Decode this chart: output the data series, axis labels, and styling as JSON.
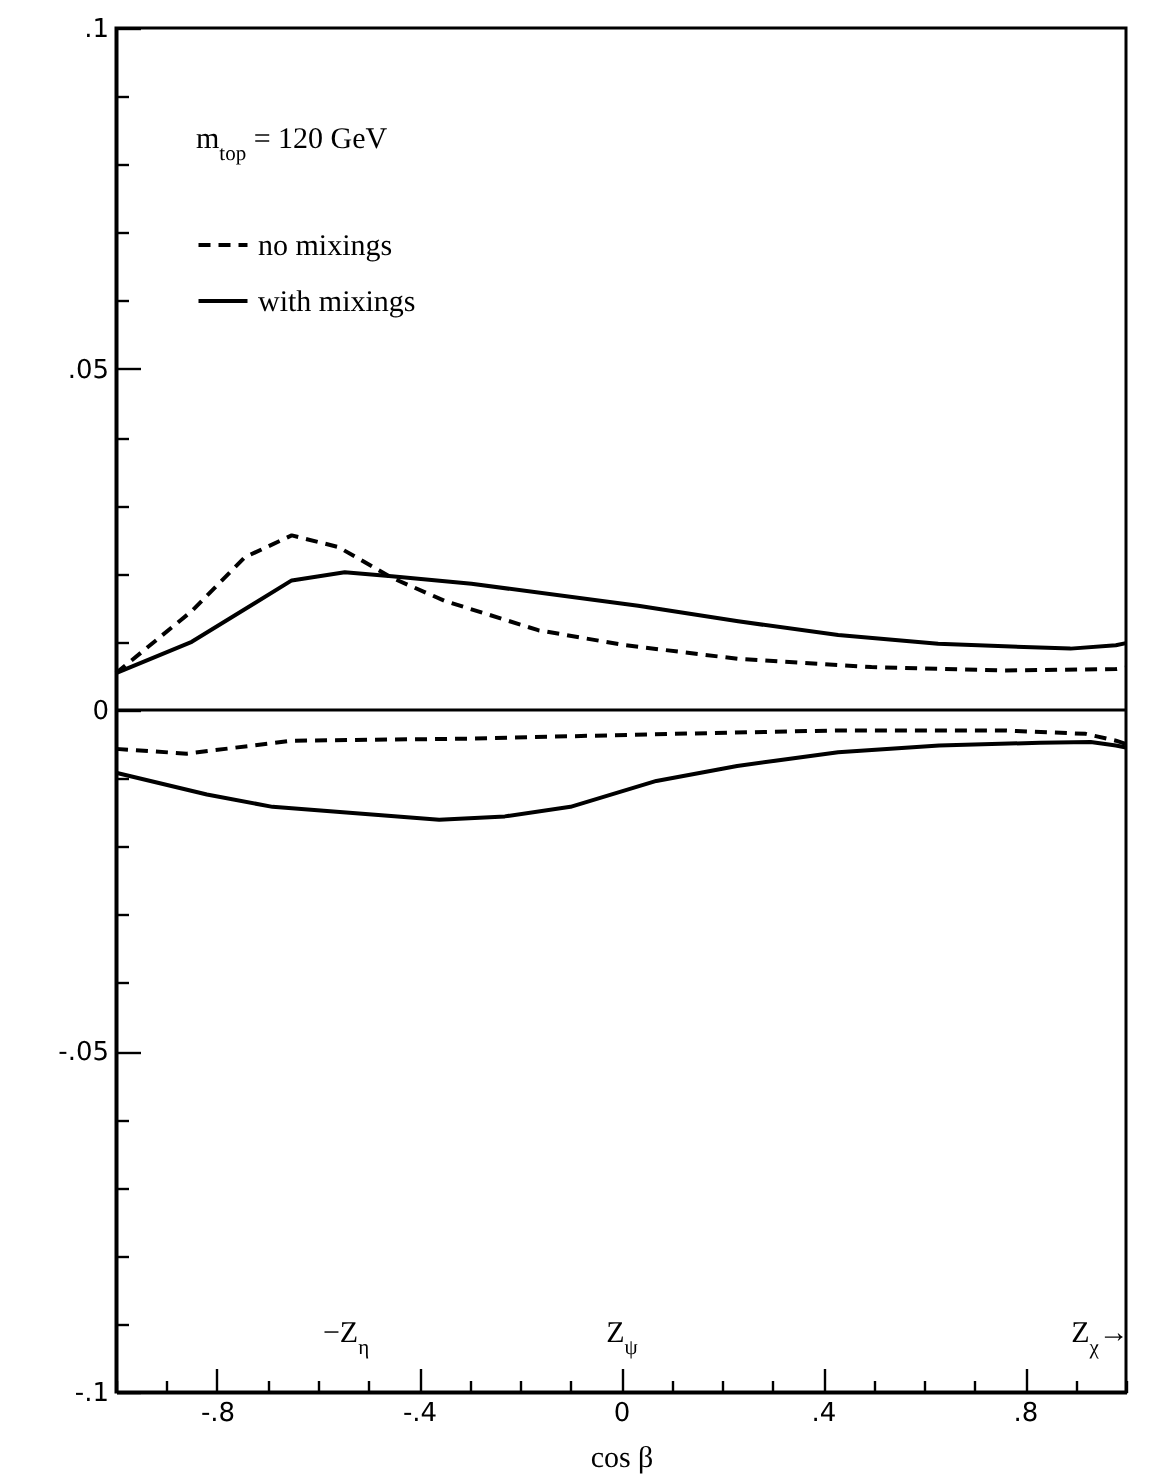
{
  "chart_data": {
    "type": "line",
    "xlabel": "cos β",
    "annotations": [
      "m$_{top}$ = 120 GeV",
      "−Z$_{η}$",
      "Z$_{ψ}$",
      "Z$_{χ}$→"
    ],
    "series": [
      {
        "name": "no mixings",
        "color": "#000000",
        "line_style": "dashed",
        "x": [
          -1,
          -0.85,
          -0.745,
          -0.652,
          -0.56,
          -0.454,
          -0.349,
          -0.164,
          0.008,
          0.232,
          0.496,
          0.76,
          0.98,
          1
        ],
        "values": [
          0.0054,
          0.0145,
          0.0224,
          0.0256,
          0.0239,
          0.0194,
          0.016,
          0.0117,
          0.0095,
          0.0075,
          0.0063,
          0.0058,
          0.006,
          0.0062
        ]
      },
      {
        "name": "with mixings",
        "color": "#000000",
        "line_style": "solid",
        "x": [
          -1,
          -0.85,
          -0.652,
          -0.547,
          -0.454,
          -0.296,
          0.034,
          0.232,
          0.43,
          0.628,
          0.89,
          0.98,
          1
        ],
        "values": [
          0.0054,
          0.01,
          0.019,
          0.0202,
          0.0196,
          0.0185,
          0.0153,
          0.013,
          0.011,
          0.0097,
          0.009,
          0.0095,
          0.0098
        ]
      },
      {
        "color": "#000000",
        "line_style": "dashed",
        "x": [
          -1,
          -0.86,
          -0.652,
          -0.3,
          0.1,
          0.43,
          0.76,
          0.92,
          0.98,
          1
        ],
        "values": [
          -0.0057,
          -0.0064,
          -0.0045,
          -0.0042,
          -0.0035,
          -0.003,
          -0.003,
          -0.0035,
          -0.0045,
          -0.005
        ]
      },
      {
        "color": "#000000",
        "line_style": "solid",
        "x": [
          -1,
          -0.82,
          -0.69,
          -0.36,
          -0.23,
          -0.1,
          0.07,
          0.23,
          0.43,
          0.63,
          0.83,
          0.93,
          0.98,
          1
        ],
        "values": [
          -0.0092,
          -0.0124,
          -0.0142,
          -0.0161,
          -0.0156,
          -0.0142,
          -0.0104,
          -0.0082,
          -0.0062,
          -0.0052,
          -0.0048,
          -0.0047,
          -0.0052,
          -0.0055
        ]
      }
    ],
    "ref_lines": [
      {
        "axis": "y",
        "value": 0
      }
    ],
    "xlim": [
      -1,
      1
    ],
    "xticks": [
      {
        "value": -1,
        "label": null
      },
      {
        "value": -0.9,
        "label": null
      },
      {
        "value": -0.8,
        "label": "-.8"
      },
      {
        "value": -0.7,
        "label": null
      },
      {
        "value": -0.6,
        "label": null
      },
      {
        "value": -0.5,
        "label": null
      },
      {
        "value": -0.4,
        "label": "-.4"
      },
      {
        "value": -0.3,
        "label": null
      },
      {
        "value": -0.2,
        "label": null
      },
      {
        "value": -0.1,
        "label": null
      },
      {
        "value": 0,
        "label": "0"
      },
      {
        "value": 0.1,
        "label": null
      },
      {
        "value": 0.2,
        "label": null
      },
      {
        "value": 0.3,
        "label": null
      },
      {
        "value": 0.4,
        "label": ".4"
      },
      {
        "value": 0.5,
        "label": null
      },
      {
        "value": 0.6,
        "label": null
      },
      {
        "value": 0.7,
        "label": null
      },
      {
        "value": 0.8,
        "label": ".8"
      },
      {
        "value": 0.9,
        "label": null
      },
      {
        "value": 1,
        "label": null
      }
    ],
    "ylim": [
      -0.1,
      0.1
    ],
    "yticks": [
      {
        "value": -0.1,
        "label": "-.1"
      },
      {
        "value": -0.09,
        "label": null
      },
      {
        "value": -0.08,
        "label": null
      },
      {
        "value": -0.07,
        "label": null
      },
      {
        "value": -0.06,
        "label": null
      },
      {
        "value": -0.05,
        "label": "-.05"
      },
      {
        "value": -0.04,
        "label": null
      },
      {
        "value": -0.03,
        "label": null
      },
      {
        "value": -0.02,
        "label": null
      },
      {
        "value": -0.01,
        "label": null
      },
      {
        "value": 0,
        "label": "0"
      },
      {
        "value": 0.01,
        "label": null
      },
      {
        "value": 0.02,
        "label": null
      },
      {
        "value": 0.03,
        "label": null
      },
      {
        "value": 0.04,
        "label": null
      },
      {
        "value": 0.05,
        "label": ".05"
      },
      {
        "value": 0.06,
        "label": null
      },
      {
        "value": 0.07,
        "label": null
      },
      {
        "value": 0.08,
        "label": null
      },
      {
        "value": 0.09,
        "label": null
      },
      {
        "value": 0.1,
        "label": ".1"
      }
    ],
    "legend": "top left",
    "grid": false
  }
}
